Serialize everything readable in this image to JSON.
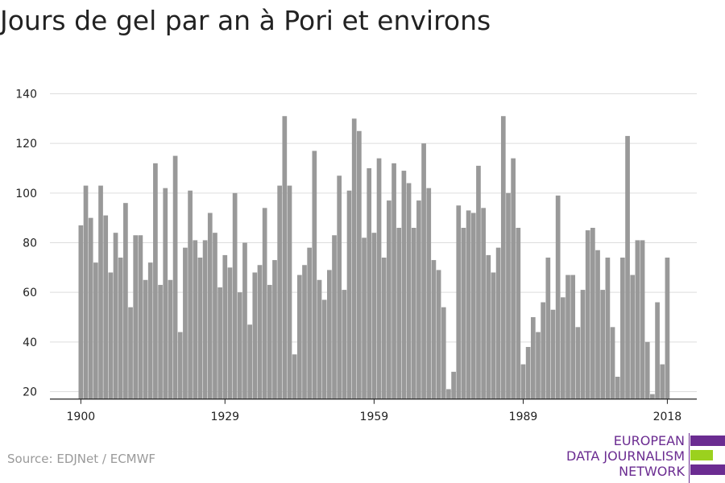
{
  "title": "Jours de gel par an à Pori et environs",
  "source": "Source: EDJNet / ECMWF",
  "logo": {
    "lines": [
      "EUROPEAN",
      "DATA JOURNALISM",
      "NETWORK"
    ],
    "colors": [
      "#6b2c91",
      "#9bd11e",
      "#6b2c91"
    ]
  },
  "colors": {
    "bar": "#999999",
    "grid": "#dddddd",
    "axis": "#222222",
    "text": "#222222"
  },
  "chart_data": {
    "type": "bar",
    "x_start": 1900,
    "x_ticks": [
      1900,
      1929,
      1959,
      1989,
      2018
    ],
    "y_ticks": [
      20,
      40,
      60,
      80,
      100,
      120,
      140
    ],
    "ylim": [
      17,
      140
    ],
    "grid": true,
    "values": [
      87,
      103,
      90,
      72,
      103,
      91,
      68,
      84,
      74,
      96,
      54,
      83,
      83,
      65,
      72,
      112,
      63,
      102,
      65,
      115,
      44,
      78,
      101,
      81,
      74,
      81,
      92,
      84,
      62,
      75,
      70,
      100,
      60,
      80,
      47,
      68,
      71,
      94,
      63,
      73,
      103,
      131,
      103,
      35,
      67,
      71,
      78,
      117,
      65,
      57,
      69,
      83,
      107,
      61,
      101,
      130,
      125,
      82,
      110,
      84,
      114,
      74,
      97,
      112,
      86,
      109,
      104,
      86,
      97,
      120,
      102,
      73,
      69,
      54,
      21,
      28,
      95,
      86,
      93,
      92,
      111,
      94,
      75,
      68,
      78,
      131,
      100,
      114,
      86,
      31,
      38,
      50,
      44,
      56,
      74,
      53,
      99,
      58,
      67,
      67,
      46,
      61,
      85,
      86,
      77,
      61,
      74,
      46,
      26,
      74,
      123,
      67,
      81,
      81,
      40,
      19,
      56,
      31,
      74
    ]
  }
}
